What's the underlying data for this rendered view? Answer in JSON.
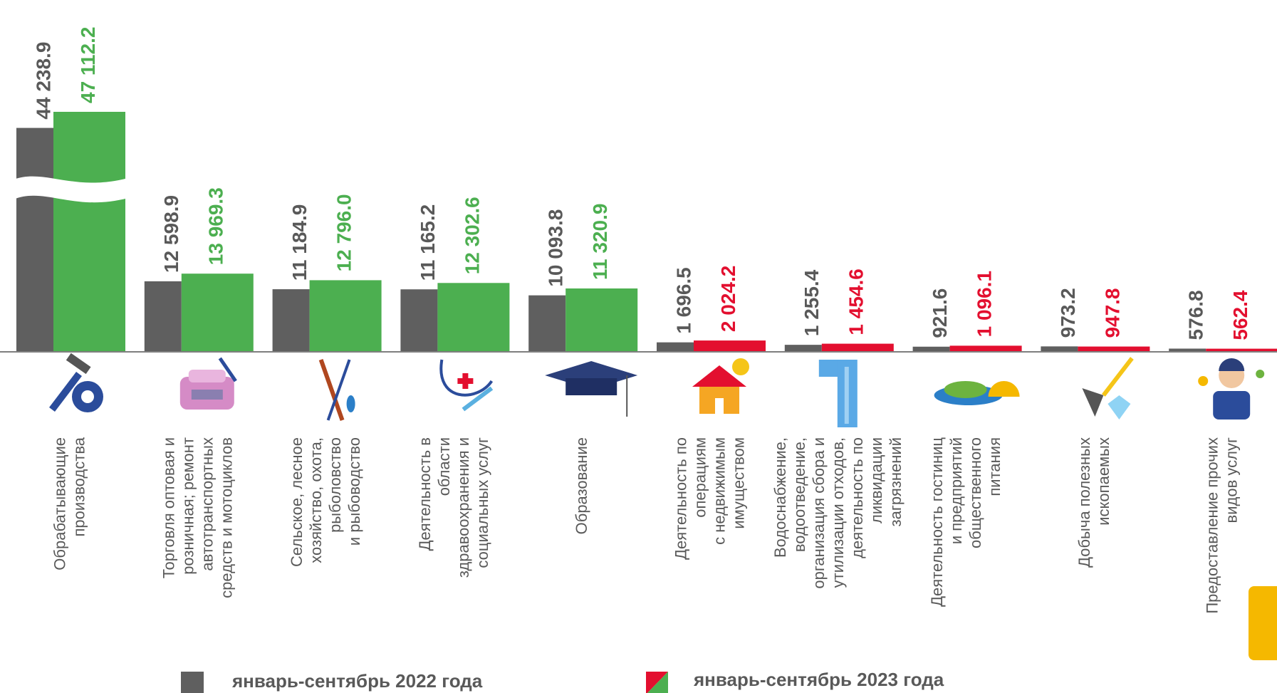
{
  "chart_data": {
    "type": "bar",
    "categories": [
      "Обрабатывающие\nпроизводства",
      "Торговля оптовая и\nрозничная; ремонт\nавтотранспортных\nсредств и мотоциклов",
      "Сельское, лесное\nхозяйство, охота,\nрыболовство\nи рыбоводство",
      "Деятельность в\nобласти\nздравоохранения и\nсоциальных услуг",
      "Образование",
      "Деятельность по\nоперациям\nс недвижимым\nимуществом",
      "Водоснабжение,\nводоотведение,\nорганизация сбора и\nутилизации отходов,\nдеятельность по\nликвидации\nзагрязнений",
      "Деятельность гостиниц\nи предприятий\nобщественного\nпитания",
      "Добыча полезных\nископаемых",
      "Предоставление прочих\nвидов  услуг"
    ],
    "series": [
      {
        "name": "январь-сентябрь 2022 года",
        "color": "#5f5f5f",
        "values": [
          44238.9,
          12598.9,
          11184.9,
          11165.2,
          10093.8,
          1696.5,
          1255.4,
          921.6,
          973.2,
          576.8
        ],
        "value_labels": [
          "44 238.9",
          "12 598.9",
          "11 184.9",
          "11 165.2",
          "10 093.8",
          "1 696.5",
          "1 255.4",
          "921.6",
          "973.2",
          "576.8"
        ]
      },
      {
        "name": "январь-сентябрь 2023 года",
        "colors": [
          "#4caf50",
          "#4caf50",
          "#4caf50",
          "#4caf50",
          "#4caf50",
          "#e30f2f",
          "#e30f2f",
          "#e30f2f",
          "#e30f2f",
          "#e30f2f"
        ],
        "values": [
          47112.2,
          13969.3,
          12796.0,
          12302.6,
          11320.9,
          2024.2,
          1454.6,
          1096.1,
          947.8,
          562.4
        ],
        "value_labels": [
          "47 112.2",
          "13 969.3",
          "12 796.0",
          "12 302.6",
          "11 320.9",
          "2 024.2",
          "1 454.6",
          "1 096.1",
          "947.8",
          "562.4"
        ]
      }
    ]
  }
}
